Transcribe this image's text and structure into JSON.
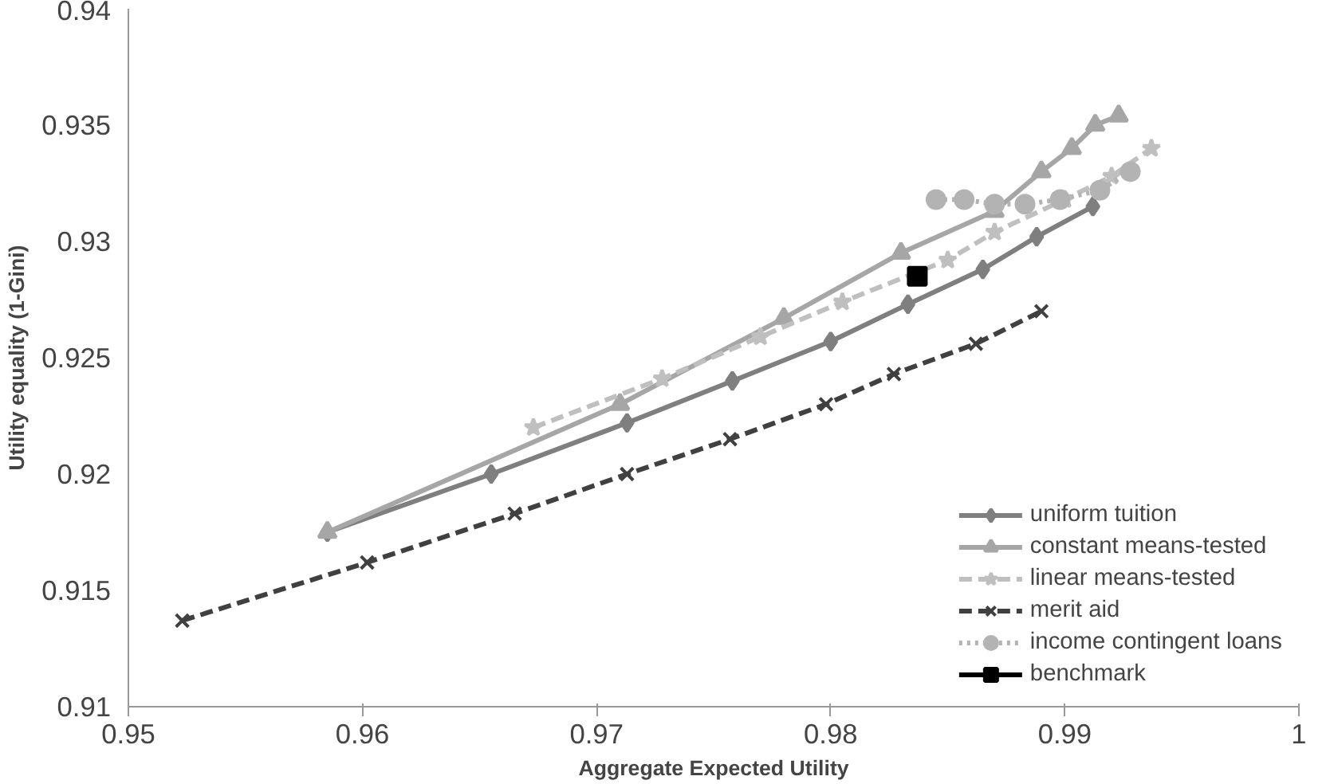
{
  "chart_data": {
    "type": "line",
    "xlabel": "Aggregate Expected Utility",
    "ylabel": "Utility equality (1-Gini)",
    "xlim": [
      0.95,
      1
    ],
    "ylim": [
      0.91,
      0.94
    ],
    "xticks": [
      0.95,
      0.96,
      0.97,
      0.98,
      0.99,
      1
    ],
    "yticks": [
      0.91,
      0.915,
      0.92,
      0.925,
      0.93,
      0.935,
      0.94
    ],
    "grid": false,
    "legend": "bottom right",
    "series": [
      {
        "name": "uniform tuition",
        "color": "#7f7f7f",
        "marker": "diamond",
        "line_style": "solid",
        "x": [
          0.9585,
          0.9655,
          0.9713,
          0.9758,
          0.98,
          0.9833,
          0.9865,
          0.9888,
          0.9912
        ],
        "values": [
          0.9175,
          0.92,
          0.9222,
          0.924,
          0.9257,
          0.9273,
          0.9288,
          0.9302,
          0.9315
        ]
      },
      {
        "name": "constant means-tested",
        "color": "#a6a6a6",
        "marker": "triangle",
        "line_style": "solid",
        "x": [
          0.9585,
          0.971,
          0.978,
          0.983,
          0.987,
          0.989,
          0.9903,
          0.9913,
          0.9923
        ],
        "values": [
          0.9175,
          0.923,
          0.9267,
          0.9295,
          0.9313,
          0.933,
          0.934,
          0.935,
          0.9354
        ]
      },
      {
        "name": "linear means-tested",
        "color": "#bfbfbf",
        "marker": "star",
        "line_style": "dashed",
        "x": [
          0.9673,
          0.9728,
          0.977,
          0.9805,
          0.985,
          0.987,
          0.99,
          0.992,
          0.9937
        ],
        "values": [
          0.922,
          0.9241,
          0.9259,
          0.9274,
          0.9292,
          0.9304,
          0.9318,
          0.9328,
          0.934
        ]
      },
      {
        "name": "merit aid",
        "color": "#404040",
        "marker": "cross",
        "line_style": "dashed",
        "x": [
          0.9523,
          0.9602,
          0.9665,
          0.9713,
          0.9757,
          0.9798,
          0.9827,
          0.9862,
          0.989
        ],
        "values": [
          0.9137,
          0.9162,
          0.9183,
          0.92,
          0.9215,
          0.923,
          0.9243,
          0.9256,
          0.927
        ]
      },
      {
        "name": "income contingent loans",
        "color": "#b3b3b3",
        "marker": "circle",
        "line_style": "dotted",
        "x": [
          0.9845,
          0.9857,
          0.987,
          0.9883,
          0.9898,
          0.9915,
          0.9928
        ],
        "values": [
          0.9318,
          0.9318,
          0.9316,
          0.9316,
          0.9318,
          0.9322,
          0.933
        ]
      },
      {
        "name": "benchmark",
        "color": "#000000",
        "marker": "square",
        "line_style": "solid",
        "x": [
          0.9837
        ],
        "values": [
          0.9285
        ]
      }
    ]
  }
}
